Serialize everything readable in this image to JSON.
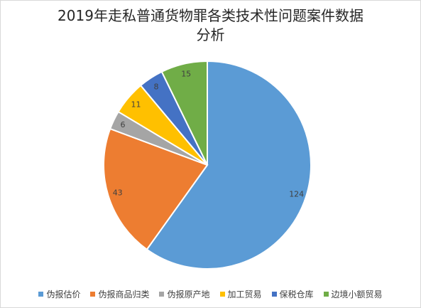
{
  "chart_data": {
    "type": "pie",
    "title_lines": [
      "2019年走私普通货物罪各类技术性问题案件数据",
      "分析"
    ],
    "categories": [
      "伪报估价",
      "伪报商品归类",
      "伪报原产地",
      "加工贸易",
      "保税仓库",
      "边境小额贸易"
    ],
    "values": [
      124,
      43,
      6,
      11,
      8,
      15
    ],
    "colors": [
      "#5b9bd5",
      "#ed7d31",
      "#a5a5a5",
      "#ffc000",
      "#4472c4",
      "#70ad47"
    ],
    "show_data_labels": true,
    "legend_position": "bottom",
    "start_angle": "12 o'clock",
    "direction": "clockwise"
  }
}
